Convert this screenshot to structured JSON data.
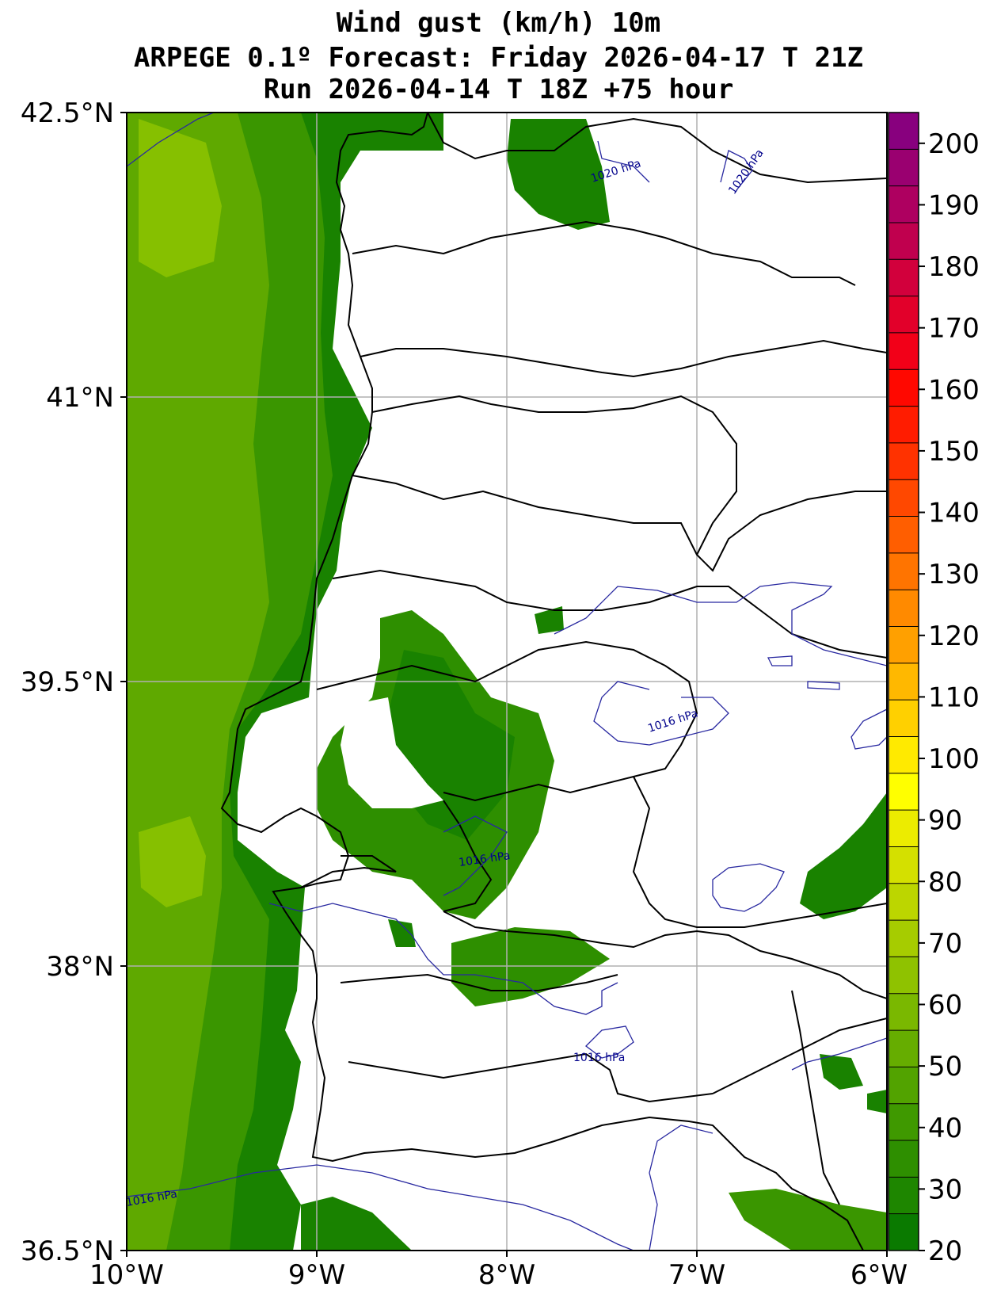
{
  "title": {
    "line1": "Wind gust (km/h) 10m",
    "line2": "ARPEGE 0.1º Forecast: Friday 2026-04-17 T 21Z",
    "line3": "Run 2026-04-14 T 18Z +75 hour"
  },
  "axes": {
    "lat_labels": [
      "42.5°N",
      "41°N",
      "39.5°N",
      "38°N",
      "36.5°N"
    ],
    "lon_labels": [
      "10°W",
      "9°W",
      "8°W",
      "7°W",
      "6°W"
    ]
  },
  "colorbar": {
    "min": 20,
    "max": 205,
    "tick_labels": [
      "20",
      "30",
      "40",
      "50",
      "60",
      "70",
      "80",
      "90",
      "100",
      "110",
      "120",
      "130",
      "140",
      "150",
      "160",
      "170",
      "180",
      "190",
      "200"
    ],
    "colors": [
      "#0a7a00",
      "#1e8600",
      "#2e8f00",
      "#3f9900",
      "#52a300",
      "#66ad00",
      "#7ab800",
      "#8fc200",
      "#a6cc00",
      "#bcd600",
      "#d4e000",
      "#ecec00",
      "#ffff00",
      "#ffea00",
      "#ffd000",
      "#ffb800",
      "#ffa000",
      "#ff8a00",
      "#ff7400",
      "#ff5e00",
      "#ff4800",
      "#ff3200",
      "#ff1c00",
      "#ff0800",
      "#f20018",
      "#e2002a",
      "#d2003c",
      "#c0004e",
      "#ae0060",
      "#9a0070",
      "#88007e"
    ]
  },
  "isobars": {
    "labels": [
      "1020 hPa",
      "1020 hPa",
      "1016 hPa",
      "1016 hPa",
      "1016 hPa",
      "1016 hPa"
    ]
  }
}
